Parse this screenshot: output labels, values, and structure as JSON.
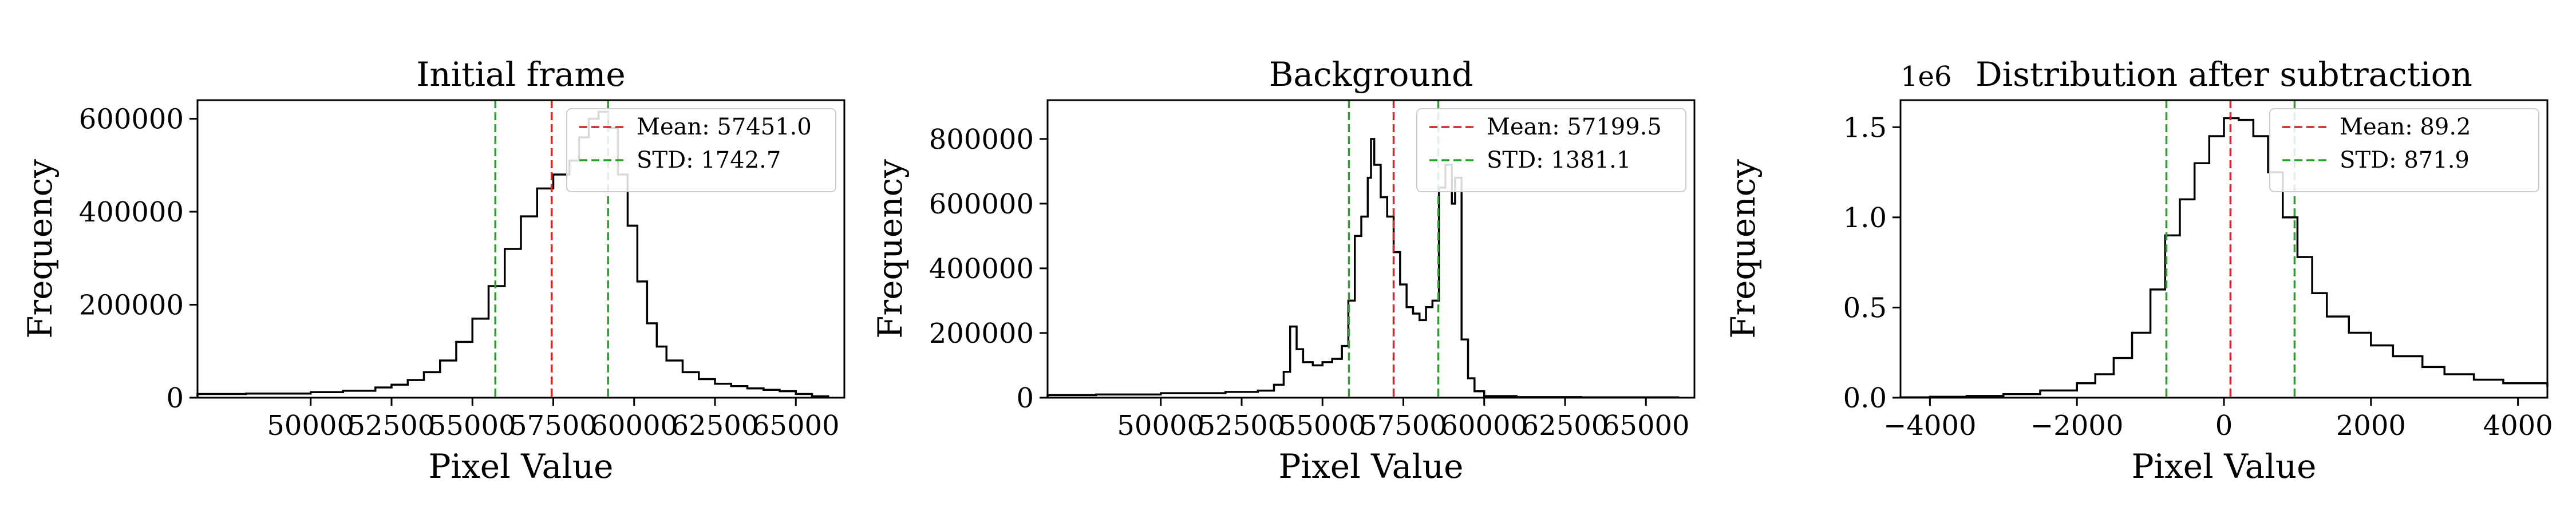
{
  "chart_data": [
    {
      "type": "histogram",
      "title": "Initial frame",
      "xlabel": "Pixel Value",
      "ylabel": "Frequency",
      "xlim": [
        46500,
        66500
      ],
      "ylim": [
        0,
        640000
      ],
      "xticks": [
        50000,
        52500,
        55000,
        57500,
        60000,
        62500,
        65000
      ],
      "xtick_labels": [
        "50000",
        "52500",
        "55000",
        "57500",
        "60000",
        "62500",
        "65000"
      ],
      "yticks": [
        0,
        200000,
        400000,
        600000
      ],
      "ytick_labels": [
        "0",
        "200000",
        "400000",
        "600000"
      ],
      "y_offset_label": "",
      "legend_position": "upper right",
      "vlines": [
        {
          "label": "Mean: 57451.0",
          "x": 57451.0,
          "color": "#d62728",
          "style": "dashed"
        },
        {
          "label": "STD: 1742.7",
          "x": 55708.3,
          "color": "#2ca02c",
          "style": "dashed"
        },
        {
          "x": 59193.7,
          "color": "#2ca02c",
          "style": "dashed"
        }
      ],
      "curve": [
        [
          46500,
          8000
        ],
        [
          48000,
          9000
        ],
        [
          50000,
          12000
        ],
        [
          51000,
          15000
        ],
        [
          52000,
          22000
        ],
        [
          52500,
          28000
        ],
        [
          53000,
          38000
        ],
        [
          53500,
          55000
        ],
        [
          54000,
          80000
        ],
        [
          54500,
          120000
        ],
        [
          55000,
          170000
        ],
        [
          55500,
          240000
        ],
        [
          56000,
          320000
        ],
        [
          56500,
          390000
        ],
        [
          57000,
          450000
        ],
        [
          57500,
          480000
        ],
        [
          58000,
          510000
        ],
        [
          58300,
          560000
        ],
        [
          58600,
          600000
        ],
        [
          58900,
          615000
        ],
        [
          59200,
          580000
        ],
        [
          59500,
          480000
        ],
        [
          59800,
          370000
        ],
        [
          60100,
          250000
        ],
        [
          60400,
          160000
        ],
        [
          60700,
          110000
        ],
        [
          61000,
          80000
        ],
        [
          61500,
          55000
        ],
        [
          62000,
          40000
        ],
        [
          62500,
          30000
        ],
        [
          63000,
          25000
        ],
        [
          63500,
          20000
        ],
        [
          64000,
          17000
        ],
        [
          64500,
          14000
        ],
        [
          65000,
          8000
        ],
        [
          65500,
          3000
        ],
        [
          66000,
          0
        ]
      ]
    },
    {
      "type": "histogram",
      "title": "Background",
      "xlabel": "Pixel Value",
      "ylabel": "Frequency",
      "xlim": [
        46500,
        66500
      ],
      "ylim": [
        0,
        920000
      ],
      "xticks": [
        50000,
        52500,
        55000,
        57500,
        60000,
        62500,
        65000
      ],
      "xtick_labels": [
        "50000",
        "52500",
        "55000",
        "57500",
        "60000",
        "62500",
        "65000"
      ],
      "yticks": [
        0,
        200000,
        400000,
        600000,
        800000
      ],
      "ytick_labels": [
        "0",
        "200000",
        "400000",
        "600000",
        "800000"
      ],
      "y_offset_label": "",
      "legend_position": "upper right",
      "vlines": [
        {
          "label": "Mean: 57199.5",
          "x": 57199.5,
          "color": "#d62728",
          "style": "dashed"
        },
        {
          "label": "STD: 1381.1",
          "x": 55818.4,
          "color": "#2ca02c",
          "style": "dashed"
        },
        {
          "x": 58580.6,
          "color": "#2ca02c",
          "style": "dashed"
        }
      ],
      "curve": [
        [
          46500,
          8000
        ],
        [
          48000,
          10000
        ],
        [
          50000,
          14000
        ],
        [
          52000,
          18000
        ],
        [
          53000,
          22000
        ],
        [
          53500,
          40000
        ],
        [
          53800,
          80000
        ],
        [
          54000,
          220000
        ],
        [
          54200,
          150000
        ],
        [
          54400,
          110000
        ],
        [
          54700,
          100000
        ],
        [
          55000,
          110000
        ],
        [
          55300,
          120000
        ],
        [
          55600,
          160000
        ],
        [
          55800,
          300000
        ],
        [
          56000,
          500000
        ],
        [
          56200,
          560000
        ],
        [
          56400,
          680000
        ],
        [
          56500,
          800000
        ],
        [
          56600,
          720000
        ],
        [
          56800,
          620000
        ],
        [
          57000,
          560000
        ],
        [
          57200,
          450000
        ],
        [
          57400,
          350000
        ],
        [
          57600,
          280000
        ],
        [
          57800,
          260000
        ],
        [
          58000,
          240000
        ],
        [
          58200,
          280000
        ],
        [
          58400,
          300000
        ],
        [
          58600,
          650000
        ],
        [
          58800,
          720000
        ],
        [
          59000,
          600000
        ],
        [
          59100,
          680000
        ],
        [
          59300,
          180000
        ],
        [
          59500,
          60000
        ],
        [
          59700,
          20000
        ],
        [
          60000,
          5000
        ],
        [
          61000,
          2000
        ],
        [
          63000,
          1000
        ],
        [
          65000,
          1000
        ],
        [
          66000,
          0
        ]
      ]
    },
    {
      "type": "histogram",
      "title": "Distribution after subtraction",
      "xlabel": "Pixel Value",
      "ylabel": "Frequency",
      "xlim": [
        -4400,
        4400
      ],
      "ylim": [
        0,
        1650000
      ],
      "xticks": [
        -4000,
        -2000,
        0,
        2000,
        4000
      ],
      "xtick_labels": [
        "−4000",
        "−2000",
        "0",
        "2000",
        "4000"
      ],
      "yticks": [
        0,
        500000,
        1000000,
        1500000
      ],
      "ytick_labels": [
        "0.0",
        "0.5",
        "1.0",
        "1.5"
      ],
      "y_offset_label": "1e6",
      "legend_position": "upper right",
      "vlines": [
        {
          "label": "Mean: 89.2",
          "x": 89.2,
          "color": "#d62728",
          "style": "dashed"
        },
        {
          "label": "STD: 871.9",
          "x": -782.7,
          "color": "#2ca02c",
          "style": "dashed"
        },
        {
          "x": 961.1,
          "color": "#2ca02c",
          "style": "dashed"
        }
      ],
      "curve": [
        [
          -4400,
          2000
        ],
        [
          -4000,
          5000
        ],
        [
          -3500,
          10000
        ],
        [
          -3000,
          20000
        ],
        [
          -2500,
          40000
        ],
        [
          -2000,
          80000
        ],
        [
          -1750,
          130000
        ],
        [
          -1500,
          220000
        ],
        [
          -1250,
          360000
        ],
        [
          -1000,
          600000
        ],
        [
          -800,
          900000
        ],
        [
          -600,
          1100000
        ],
        [
          -400,
          1300000
        ],
        [
          -200,
          1450000
        ],
        [
          0,
          1550000
        ],
        [
          200,
          1540000
        ],
        [
          400,
          1450000
        ],
        [
          600,
          1250000
        ],
        [
          800,
          1000000
        ],
        [
          1000,
          780000
        ],
        [
          1200,
          580000
        ],
        [
          1400,
          450000
        ],
        [
          1700,
          360000
        ],
        [
          2000,
          290000
        ],
        [
          2300,
          230000
        ],
        [
          2700,
          170000
        ],
        [
          3000,
          130000
        ],
        [
          3400,
          100000
        ],
        [
          3800,
          80000
        ],
        [
          4400,
          60000
        ]
      ]
    }
  ]
}
